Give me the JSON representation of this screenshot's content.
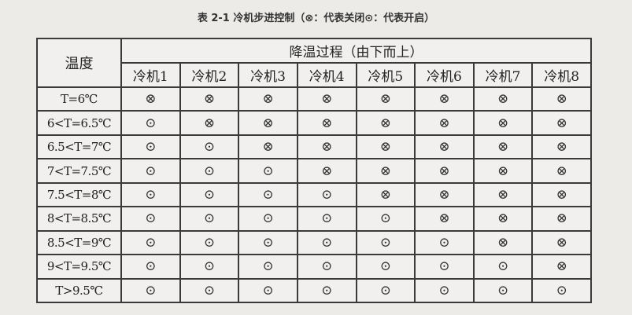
{
  "title": "表 2-1  冷机步进控制（⊗：代表关闭⊙：代表开启）",
  "header": {
    "temperature": "温度",
    "process": "降温过程（由下而上）",
    "chillers": [
      "冷机1",
      "冷机2",
      "冷机3",
      "冷机4",
      "冷机5",
      "冷机6",
      "冷机7",
      "冷机8"
    ]
  },
  "legend": {
    "off_symbol": "⊗",
    "on_symbol": "⊙"
  },
  "rows": [
    {
      "temp": "T=6℃",
      "states": [
        "⊗",
        "⊗",
        "⊗",
        "⊗",
        "⊗",
        "⊗",
        "⊗",
        "⊗"
      ]
    },
    {
      "temp": "6<T=6.5℃",
      "states": [
        "⊙",
        "⊗",
        "⊗",
        "⊗",
        "⊗",
        "⊗",
        "⊗",
        "⊗"
      ]
    },
    {
      "temp": "6.5<T=7℃",
      "states": [
        "⊙",
        "⊙",
        "⊗",
        "⊗",
        "⊗",
        "⊗",
        "⊗",
        "⊗"
      ]
    },
    {
      "temp": "7<T=7.5℃",
      "states": [
        "⊙",
        "⊙",
        "⊙",
        "⊗",
        "⊗",
        "⊗",
        "⊗",
        "⊗"
      ]
    },
    {
      "temp": "7.5<T=8℃",
      "states": [
        "⊙",
        "⊙",
        "⊙",
        "⊙",
        "⊗",
        "⊗",
        "⊗",
        "⊗"
      ]
    },
    {
      "temp": "8<T=8.5℃",
      "states": [
        "⊙",
        "⊙",
        "⊙",
        "⊙",
        "⊙",
        "⊗",
        "⊗",
        "⊗"
      ]
    },
    {
      "temp": "8.5<T=9℃",
      "states": [
        "⊙",
        "⊙",
        "⊙",
        "⊙",
        "⊙",
        "⊙",
        "⊗",
        "⊗"
      ]
    },
    {
      "temp": "9<T=9.5℃",
      "states": [
        "⊙",
        "⊙",
        "⊙",
        "⊙",
        "⊙",
        "⊙",
        "⊙",
        "⊗"
      ]
    },
    {
      "temp": "T>9.5℃",
      "states": [
        "⊙",
        "⊙",
        "⊙",
        "⊙",
        "⊙",
        "⊙",
        "⊙",
        "⊙"
      ]
    }
  ]
}
